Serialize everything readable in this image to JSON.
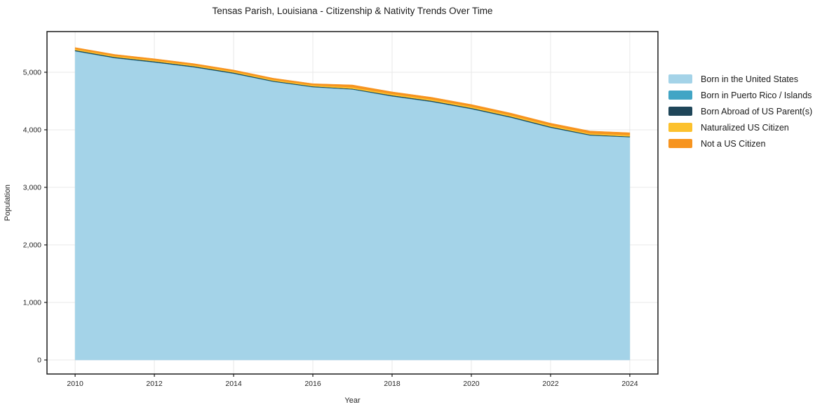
{
  "page": {
    "title": "Tensas Parish, Louisiana - Citizenship & Nativity Trends Over Time"
  },
  "chart_data": {
    "type": "area",
    "stacked": true,
    "title": "Tensas Parish, Louisiana - Citizenship & Nativity Trends Over Time",
    "xlabel": "Year",
    "ylabel": "Population",
    "x": [
      2010,
      2011,
      2012,
      2013,
      2014,
      2015,
      2016,
      2017,
      2018,
      2019,
      2020,
      2021,
      2022,
      2023,
      2024
    ],
    "series": [
      {
        "name": "Born in the United States",
        "color": "#a4d3e8",
        "values": [
          5365,
          5245,
          5170,
          5085,
          4975,
          4835,
          4740,
          4700,
          4580,
          4485,
          4360,
          4210,
          4035,
          3900,
          3870
        ]
      },
      {
        "name": "Born in Puerto Rico / Islands",
        "color": "#41a5c5",
        "values": [
          5,
          5,
          5,
          5,
          5,
          5,
          5,
          5,
          5,
          5,
          5,
          5,
          5,
          5,
          5
        ]
      },
      {
        "name": "Born Abroad of US Parent(s)",
        "color": "#1f4659",
        "values": [
          15,
          15,
          15,
          15,
          15,
          12,
          12,
          10,
          15,
          15,
          15,
          15,
          15,
          12,
          10
        ]
      },
      {
        "name": "Naturalized US Citizen",
        "color": "#fcc12d",
        "values": [
          20,
          20,
          20,
          20,
          20,
          20,
          20,
          25,
          25,
          25,
          25,
          25,
          25,
          22,
          25
        ]
      },
      {
        "name": "Not a US Citizen",
        "color": "#f7941f",
        "values": [
          25,
          25,
          25,
          25,
          25,
          25,
          25,
          40,
          35,
          35,
          35,
          35,
          35,
          40,
          40
        ]
      }
    ],
    "x_ticks": [
      2010,
      2012,
      2014,
      2016,
      2018,
      2020,
      2022,
      2024
    ],
    "x_tick_labels": [
      "2010",
      "2012",
      "2014",
      "2016",
      "2018",
      "2020",
      "2022",
      "2024"
    ],
    "y_ticks": [
      0,
      1000,
      2000,
      3000,
      4000,
      5000
    ],
    "y_tick_labels": [
      "0",
      "1,000",
      "2,000",
      "3,000",
      "4,000",
      "5,000"
    ],
    "xlim": [
      2009.29,
      2024.71
    ],
    "ylim": [
      -244,
      5707
    ],
    "grid": true,
    "legend_position": "right",
    "colors": {
      "grid": "#e8e8e8",
      "spine": "#1a1a1a",
      "tick_label": "#262626",
      "background": "#ffffff"
    }
  }
}
